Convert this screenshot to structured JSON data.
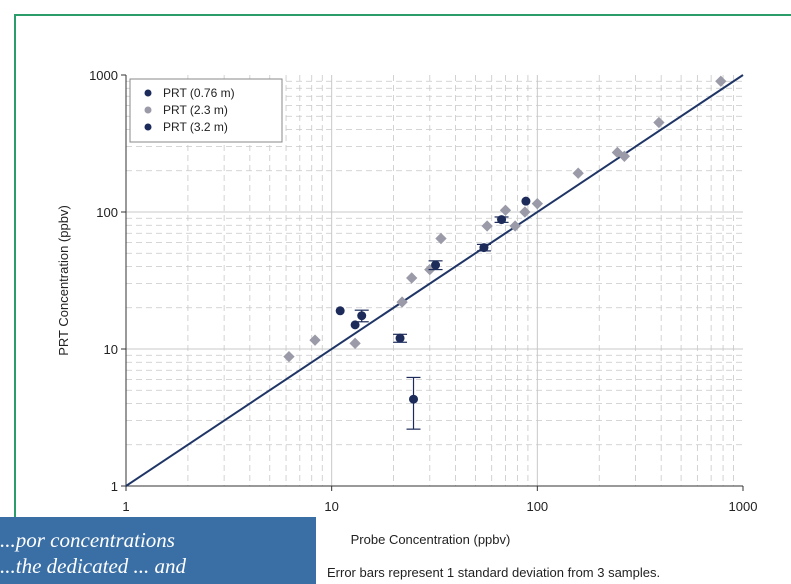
{
  "colors": {
    "frame": "#2a9d6a",
    "grid": "#c8c8c8",
    "line": "#1f3566",
    "series_dark": "#1c2b5a",
    "series_light": "#9a9aa8",
    "caption_bg": "#3a6fa6"
  },
  "caption": {
    "text": "...por concentrations\n...the dedicated ... and"
  },
  "footnote": "Error bars represent 1 standard deviation from 3 samples.",
  "chart_data": {
    "type": "scatter",
    "title": "",
    "xlabel": "Probe Concentration (ppbv)",
    "ylabel": "PRT Concentration (ppbv)",
    "xscale": "log",
    "yscale": "log",
    "xlim": [
      1,
      1000
    ],
    "ylim": [
      1,
      1000
    ],
    "xticks": [
      "1",
      "10",
      "100",
      "1000"
    ],
    "yticks": [
      "1",
      "10",
      "100",
      "1000"
    ],
    "grid": true,
    "legend_position": "top-left",
    "reference_line": "1:1",
    "series": [
      {
        "name": "PRT (0.76 m)",
        "color": "#1c2b5a",
        "points": [
          [
            11,
            19
          ],
          [
            13,
            15
          ],
          [
            14,
            17.5
          ],
          [
            21.5,
            12
          ],
          [
            25,
            4.3
          ]
        ],
        "yerr": [
          [
            0,
            0
          ],
          [
            0,
            0
          ],
          [
            1.7,
            1.7
          ],
          [
            0.8,
            0.8
          ],
          [
            1.7,
            1.9
          ]
        ]
      },
      {
        "name": "PRT (2.3 m)",
        "color": "#9a9aa8",
        "points": [
          [
            6.2,
            8.8
          ],
          [
            8.3,
            11.6
          ],
          [
            13,
            11
          ],
          [
            22,
            22
          ],
          [
            24.5,
            33
          ],
          [
            30,
            38
          ],
          [
            34,
            64
          ],
          [
            57,
            79
          ],
          [
            70,
            103
          ],
          [
            78,
            79
          ],
          [
            87,
            100
          ],
          [
            100,
            115
          ],
          [
            158,
            192
          ],
          [
            245,
            272
          ],
          [
            265,
            255
          ],
          [
            390,
            450
          ],
          [
            780,
            900
          ]
        ],
        "yerr": [
          [
            0,
            0
          ],
          [
            0,
            0
          ],
          [
            0,
            0
          ],
          [
            0,
            0
          ],
          [
            0,
            0
          ],
          [
            0,
            0
          ],
          [
            0,
            0
          ],
          [
            0,
            0
          ],
          [
            0,
            0
          ],
          [
            0,
            0
          ],
          [
            0,
            0
          ],
          [
            0,
            0
          ],
          [
            0,
            0
          ],
          [
            0,
            0
          ],
          [
            0,
            0
          ],
          [
            0,
            0
          ],
          [
            0,
            0
          ]
        ]
      },
      {
        "name": "PRT (3.2 m)",
        "color": "#1c2b5a",
        "points": [
          [
            32,
            41
          ],
          [
            55,
            55
          ],
          [
            67,
            88
          ],
          [
            88,
            120
          ]
        ],
        "yerr": [
          [
            3,
            3
          ],
          [
            3,
            3
          ],
          [
            4,
            4
          ],
          [
            0,
            0
          ]
        ]
      }
    ]
  }
}
